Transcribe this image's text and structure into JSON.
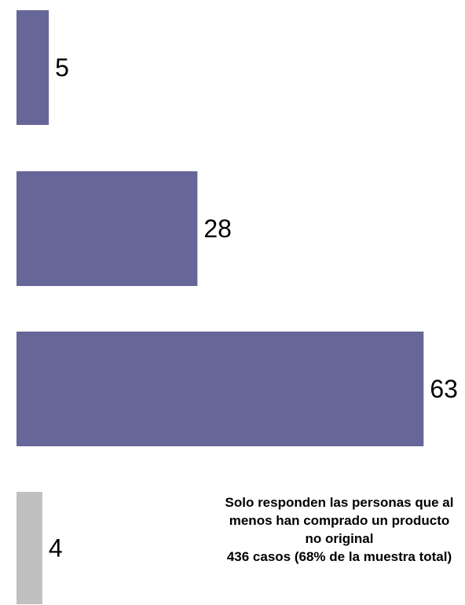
{
  "chart_data": {
    "type": "bar",
    "orientation": "horizontal",
    "values": [
      5,
      28,
      63,
      4
    ],
    "bar_colors": [
      "#666699",
      "#666699",
      "#666699",
      "#c0c0c0"
    ],
    "xlim": [
      0,
      66
    ],
    "grid": false,
    "legend": "none"
  },
  "note": {
    "line1": "Solo responden las personas que al",
    "line2": "menos han comprado un producto",
    "line3": "no original",
    "line4": "436 casos (68% de la muestra total)"
  }
}
